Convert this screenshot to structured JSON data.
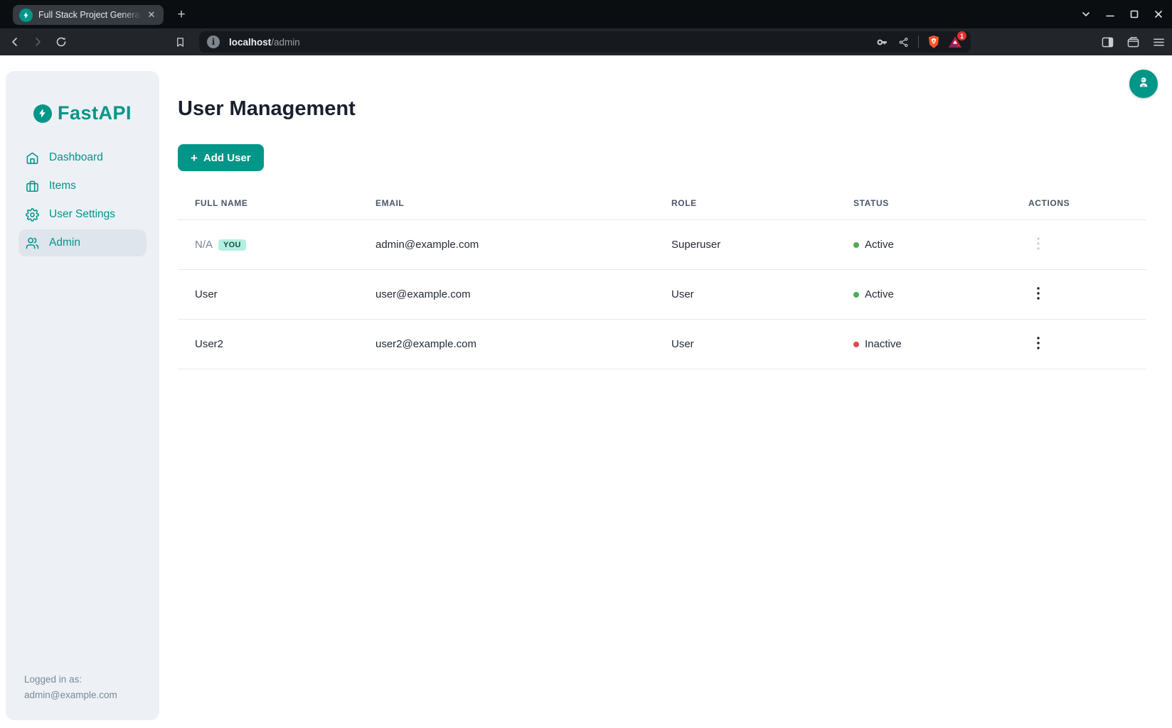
{
  "browser": {
    "tab_title": "Full Stack Project Genera",
    "url_host": "localhost",
    "url_path": "/admin",
    "rewards_badge": "1"
  },
  "sidebar": {
    "logo_text": "FastAPI",
    "items": [
      {
        "id": "dashboard",
        "label": "Dashboard",
        "icon": "home-icon",
        "active": false
      },
      {
        "id": "items",
        "label": "Items",
        "icon": "briefcase-icon",
        "active": false
      },
      {
        "id": "user-settings",
        "label": "User Settings",
        "icon": "gear-icon",
        "active": false
      },
      {
        "id": "admin",
        "label": "Admin",
        "icon": "users-icon",
        "active": true
      }
    ],
    "footer_line1": "Logged in as:",
    "footer_line2": "admin@example.com"
  },
  "main": {
    "title": "User Management",
    "add_user_label": "Add User",
    "table": {
      "headers": [
        "FULL NAME",
        "EMAIL",
        "ROLE",
        "STATUS",
        "ACTIONS"
      ],
      "rows": [
        {
          "full_name": "N/A",
          "full_name_muted": true,
          "badge": "YOU",
          "email": "admin@example.com",
          "role": "Superuser",
          "status": "Active",
          "status_color": "#4caf50",
          "actions_disabled": true
        },
        {
          "full_name": "User",
          "full_name_muted": false,
          "badge": null,
          "email": "user@example.com",
          "role": "User",
          "status": "Active",
          "status_color": "#4caf50",
          "actions_disabled": false
        },
        {
          "full_name": "User2",
          "full_name_muted": false,
          "badge": null,
          "email": "user2@example.com",
          "role": "User",
          "status": "Inactive",
          "status_color": "#e5484d",
          "actions_disabled": false
        }
      ]
    }
  },
  "colors": {
    "accent": "#009688",
    "you_badge_bg": "#b3f0e1",
    "active_dot": "#4caf50",
    "inactive_dot": "#e5484d"
  }
}
